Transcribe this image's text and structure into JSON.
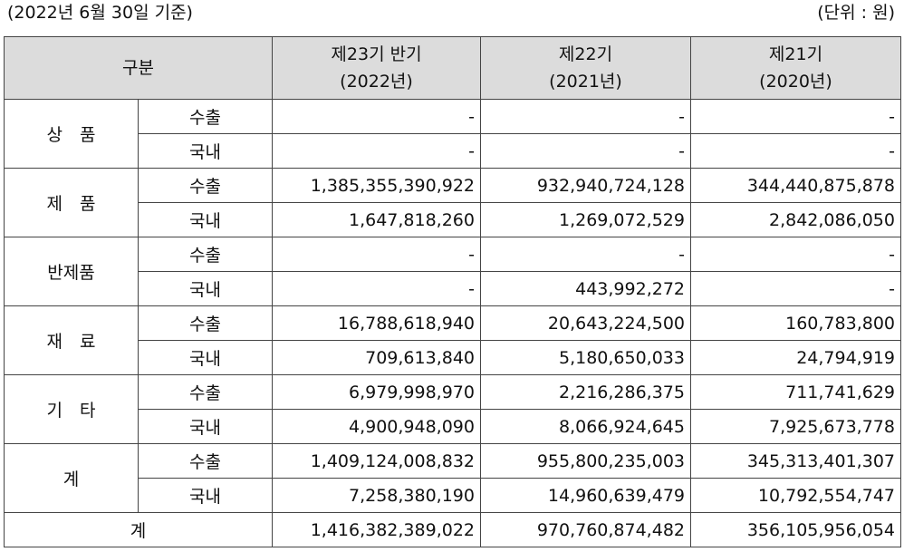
{
  "caption": {
    "left": "(2022년 6월 30일 기준)",
    "right": "(단위 : 원)"
  },
  "table": {
    "header": {
      "division": "구분",
      "periods": [
        {
          "line1": "제23기 반기",
          "line2": "(2022년)"
        },
        {
          "line1": "제22기",
          "line2": "(2021년)"
        },
        {
          "line1": "제21기",
          "line2": "(2020년)"
        }
      ]
    },
    "groups": [
      {
        "category": "상　품",
        "rows": [
          {
            "type": "수출",
            "values": [
              "-",
              "-",
              "-"
            ]
          },
          {
            "type": "국내",
            "values": [
              "-",
              "-",
              "-"
            ]
          }
        ]
      },
      {
        "category": "제　품",
        "rows": [
          {
            "type": "수출",
            "values": [
              "1,385,355,390,922",
              "932,940,724,128",
              "344,440,875,878"
            ]
          },
          {
            "type": "국내",
            "values": [
              "1,647,818,260",
              "1,269,072,529",
              "2,842,086,050"
            ]
          }
        ]
      },
      {
        "category": "반제품",
        "rows": [
          {
            "type": "수출",
            "values": [
              "-",
              "-",
              "-"
            ]
          },
          {
            "type": "국내",
            "values": [
              "-",
              "443,992,272",
              "-"
            ]
          }
        ]
      },
      {
        "category": "재　료",
        "rows": [
          {
            "type": "수출",
            "values": [
              "16,788,618,940",
              "20,643,224,500",
              "160,783,800"
            ]
          },
          {
            "type": "국내",
            "values": [
              "709,613,840",
              "5,180,650,033",
              "24,794,919"
            ]
          }
        ]
      },
      {
        "category": "기　타",
        "rows": [
          {
            "type": "수출",
            "values": [
              "6,979,998,970",
              "2,216,286,375",
              "711,741,629"
            ]
          },
          {
            "type": "국내",
            "values": [
              "4,900,948,090",
              "8,066,924,645",
              "7,925,673,778"
            ]
          }
        ]
      },
      {
        "category": "계",
        "rows": [
          {
            "type": "수출",
            "values": [
              "1,409,124,008,832",
              "955,800,235,003",
              "345,313,401,307"
            ]
          },
          {
            "type": "국내",
            "values": [
              "7,258,380,190",
              "14,960,639,479",
              "10,792,554,747"
            ]
          }
        ]
      }
    ],
    "grand_total": {
      "label": "계",
      "values": [
        "1,416,382,389,022",
        "970,760,874,482",
        "356,105,956,054"
      ]
    }
  },
  "colors": {
    "header_background": "#dcdcdc",
    "border": "#444444"
  }
}
